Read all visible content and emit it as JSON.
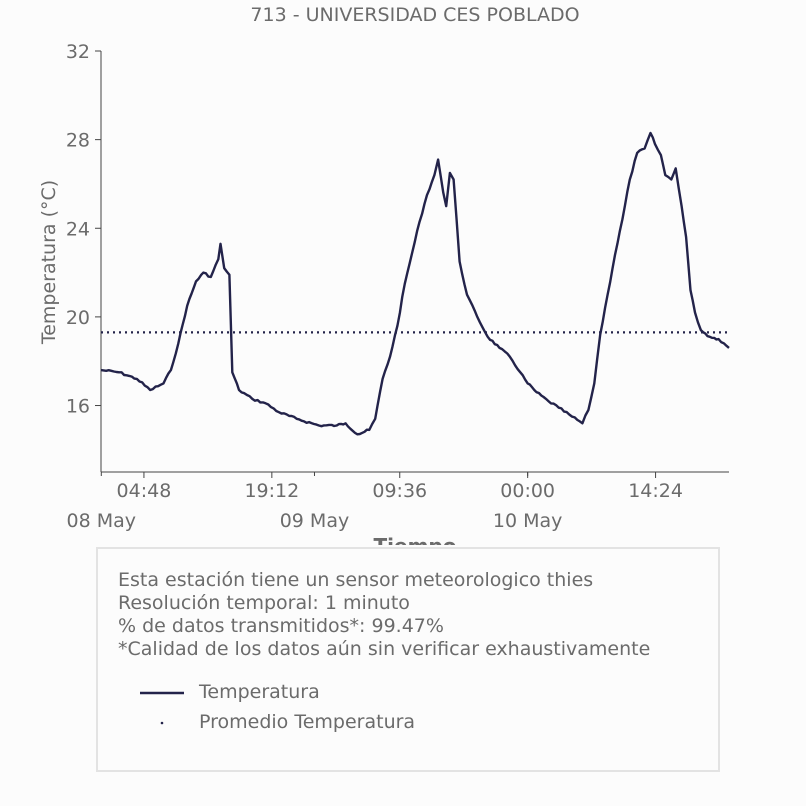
{
  "chart_data": {
    "type": "line",
    "title": "713 - UNIVERSIDAD CES POBLADO",
    "xlabel": "Tiempo",
    "ylabel": "Temperatura (°C)",
    "ylim": [
      13,
      32
    ],
    "yticks": [
      16,
      20,
      24,
      28,
      32
    ],
    "xlim": [
      "2023-05-07T23:58",
      "2023-05-10T22:40"
    ],
    "xticks": [
      {
        "time": "2023-05-08T04:48",
        "label": "04:48"
      },
      {
        "time": "2023-05-08T19:12",
        "label": "19:12"
      },
      {
        "time": "2023-05-09T09:36",
        "label": "09:36"
      },
      {
        "time": "2023-05-10T00:00",
        "label": "00:00"
      },
      {
        "time": "2023-05-10T14:24",
        "label": "14:24"
      }
    ],
    "date_labels": [
      {
        "time": "2023-05-08T00:00",
        "label": "08 May"
      },
      {
        "time": "2023-05-09T00:00",
        "label": "09 May"
      },
      {
        "time": "2023-05-10T00:00",
        "label": "10 May"
      }
    ],
    "grid": false,
    "colors": {
      "line": "#23234a",
      "mean": "#23234a",
      "text": "#6b6b6b",
      "axis": "#444444"
    },
    "series": [
      {
        "name": "Temperatura",
        "points": [
          [
            "2023-05-07T23:58",
            17.6
          ],
          [
            "2023-05-08T02:00",
            17.5
          ],
          [
            "2023-05-08T04:00",
            17.2
          ],
          [
            "2023-05-08T05:30",
            16.7
          ],
          [
            "2023-05-08T07:00",
            17.0
          ],
          [
            "2023-05-08T07:50",
            17.6
          ],
          [
            "2023-05-08T08:40",
            18.8
          ],
          [
            "2023-05-08T09:40",
            20.5
          ],
          [
            "2023-05-08T10:40",
            21.6
          ],
          [
            "2023-05-08T11:30",
            22.0
          ],
          [
            "2023-05-08T12:20",
            21.8
          ],
          [
            "2023-05-08T13:10",
            22.6
          ],
          [
            "2023-05-08T13:25",
            23.3
          ],
          [
            "2023-05-08T13:50",
            22.2
          ],
          [
            "2023-05-08T14:25",
            21.9
          ],
          [
            "2023-05-08T14:45",
            17.5
          ],
          [
            "2023-05-08T15:30",
            16.7
          ],
          [
            "2023-05-08T17:00",
            16.3
          ],
          [
            "2023-05-08T18:30",
            16.1
          ],
          [
            "2023-05-08T20:00",
            15.7
          ],
          [
            "2023-05-08T22:00",
            15.4
          ],
          [
            "2023-05-09T00:30",
            15.1
          ],
          [
            "2023-05-09T02:30",
            15.1
          ],
          [
            "2023-05-09T03:30",
            15.2
          ],
          [
            "2023-05-09T04:50",
            14.7
          ],
          [
            "2023-05-09T06:10",
            14.9
          ],
          [
            "2023-05-09T06:50",
            15.4
          ],
          [
            "2023-05-09T07:40",
            17.2
          ],
          [
            "2023-05-09T08:30",
            18.2
          ],
          [
            "2023-05-09T09:20",
            19.6
          ],
          [
            "2023-05-09T10:10",
            21.5
          ],
          [
            "2023-05-09T11:00",
            22.9
          ],
          [
            "2023-05-09T11:50",
            24.3
          ],
          [
            "2023-05-09T12:40",
            25.5
          ],
          [
            "2023-05-09T13:30",
            26.4
          ],
          [
            "2023-05-09T13:55",
            27.1
          ],
          [
            "2023-05-09T14:30",
            25.6
          ],
          [
            "2023-05-09T14:50",
            25.0
          ],
          [
            "2023-05-09T15:15",
            26.5
          ],
          [
            "2023-05-09T15:40",
            26.2
          ],
          [
            "2023-05-09T16:20",
            22.5
          ],
          [
            "2023-05-09T17:10",
            21.0
          ],
          [
            "2023-05-09T18:20",
            20.0
          ],
          [
            "2023-05-09T19:30",
            19.1
          ],
          [
            "2023-05-09T20:50",
            18.6
          ],
          [
            "2023-05-09T22:00",
            18.2
          ],
          [
            "2023-05-09T23:10",
            17.5
          ],
          [
            "2023-05-10T00:00",
            17.0
          ],
          [
            "2023-05-10T01:00",
            16.6
          ],
          [
            "2023-05-10T02:20",
            16.2
          ],
          [
            "2023-05-10T03:30",
            15.9
          ],
          [
            "2023-05-10T05:00",
            15.5
          ],
          [
            "2023-05-10T06:10",
            15.2
          ],
          [
            "2023-05-10T06:50",
            15.8
          ],
          [
            "2023-05-10T07:30",
            17.0
          ],
          [
            "2023-05-10T08:10",
            19.2
          ],
          [
            "2023-05-10T09:00",
            21.0
          ],
          [
            "2023-05-10T09:50",
            22.8
          ],
          [
            "2023-05-10T10:40",
            24.4
          ],
          [
            "2023-05-10T11:30",
            26.2
          ],
          [
            "2023-05-10T12:20",
            27.4
          ],
          [
            "2023-05-10T13:10",
            27.6
          ],
          [
            "2023-05-10T13:50",
            28.3
          ],
          [
            "2023-05-10T14:20",
            27.8
          ],
          [
            "2023-05-10T15:00",
            27.3
          ],
          [
            "2023-05-10T15:30",
            26.4
          ],
          [
            "2023-05-10T16:10",
            26.2
          ],
          [
            "2023-05-10T16:40",
            26.7
          ],
          [
            "2023-05-10T17:20",
            25.0
          ],
          [
            "2023-05-10T17:50",
            23.6
          ],
          [
            "2023-05-10T18:20",
            21.2
          ],
          [
            "2023-05-10T18:50",
            20.2
          ],
          [
            "2023-05-10T19:30",
            19.4
          ],
          [
            "2023-05-10T20:30",
            19.1
          ],
          [
            "2023-05-10T21:30",
            19.0
          ],
          [
            "2023-05-10T22:40",
            18.6
          ]
        ]
      },
      {
        "name": "Promedio Temperatura",
        "value": 19.3
      }
    ]
  },
  "info": {
    "line1": "Esta estación tiene un sensor meteorologico thies",
    "line2": "Resolución temporal: 1 minuto",
    "line3": "% de datos transmitidos*: 99.47%",
    "line4": "*Calidad de los datos aún sin verificar exhaustivamente"
  },
  "legend": {
    "line_label": "Temperatura",
    "mean_label": "Promedio Temperatura"
  }
}
